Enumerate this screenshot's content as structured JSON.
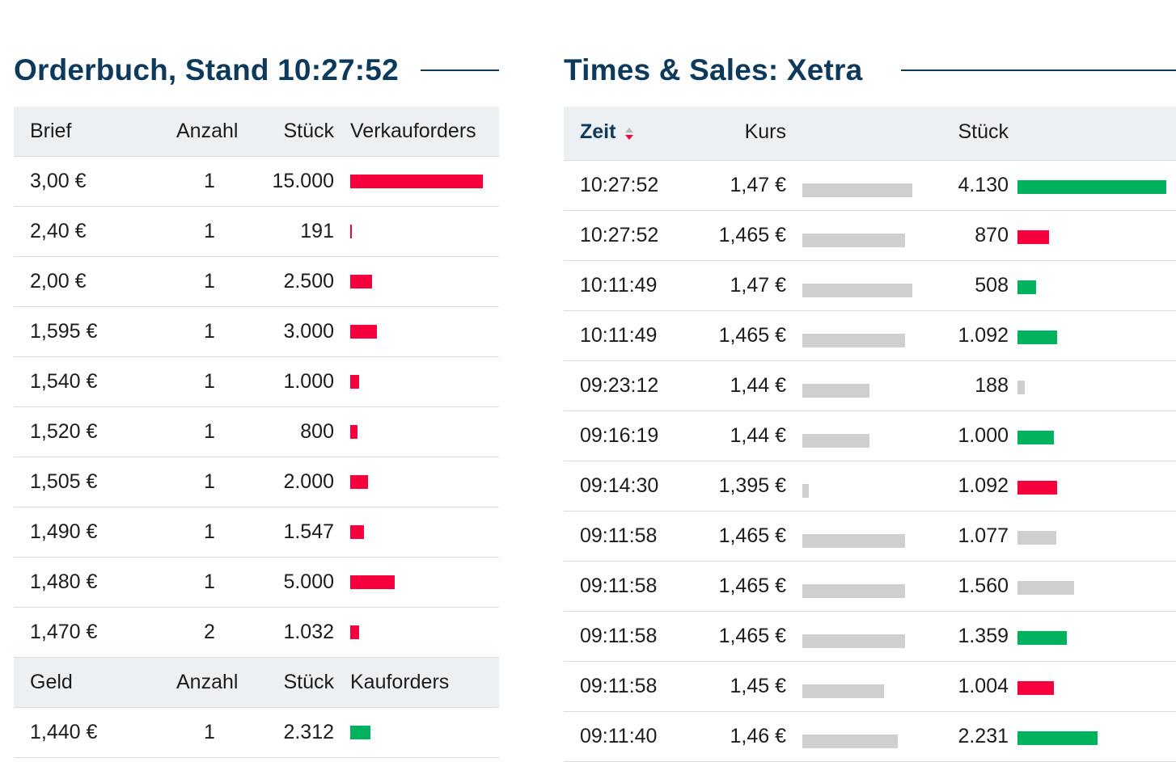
{
  "orderbook": {
    "title": "Orderbuch, Stand 10:27:52",
    "ask_header": {
      "price": "Brief",
      "count": "Anzahl",
      "pieces": "Stück",
      "bar": "Verkauforders"
    },
    "asks": [
      {
        "price": "3,00 €",
        "count": "1",
        "pieces": "15.000",
        "volume": 15000
      },
      {
        "price": "2,40 €",
        "count": "1",
        "pieces": "191",
        "volume": 191
      },
      {
        "price": "2,00 €",
        "count": "1",
        "pieces": "2.500",
        "volume": 2500
      },
      {
        "price": "1,595 €",
        "count": "1",
        "pieces": "3.000",
        "volume": 3000
      },
      {
        "price": "1,540 €",
        "count": "1",
        "pieces": "1.000",
        "volume": 1000
      },
      {
        "price": "1,520 €",
        "count": "1",
        "pieces": "800",
        "volume": 800
      },
      {
        "price": "1,505 €",
        "count": "1",
        "pieces": "2.000",
        "volume": 2000
      },
      {
        "price": "1,490 €",
        "count": "1",
        "pieces": "1.547",
        "volume": 1547
      },
      {
        "price": "1,480 €",
        "count": "1",
        "pieces": "5.000",
        "volume": 5000
      },
      {
        "price": "1,470 €",
        "count": "2",
        "pieces": "1.032",
        "volume": 1032
      }
    ],
    "bid_header": {
      "price": "Geld",
      "count": "Anzahl",
      "pieces": "Stück",
      "bar": "Kauforders"
    },
    "bids": [
      {
        "price": "1,440 €",
        "count": "1",
        "pieces": "2.312",
        "volume": 2312
      }
    ],
    "colors": {
      "sell": "#f5003d",
      "buy": "#00b15d"
    }
  },
  "times_sales": {
    "title": "Times & Sales: Xetra",
    "header": {
      "time": "Zeit",
      "price": "Kurs",
      "pieces": "Stück"
    },
    "sort_icon": "sort-desc-icon",
    "trades": [
      {
        "time": "10:27:52",
        "price": "1,47 €",
        "price_value": 1.47,
        "pieces": "4.130",
        "volume": 4130,
        "side": "buy"
      },
      {
        "time": "10:27:52",
        "price": "1,465 €",
        "price_value": 1.465,
        "pieces": "870",
        "volume": 870,
        "side": "sell"
      },
      {
        "time": "10:11:49",
        "price": "1,47 €",
        "price_value": 1.47,
        "pieces": "508",
        "volume": 508,
        "side": "buy"
      },
      {
        "time": "10:11:49",
        "price": "1,465 €",
        "price_value": 1.465,
        "pieces": "1.092",
        "volume": 1092,
        "side": "buy"
      },
      {
        "time": "09:23:12",
        "price": "1,44 €",
        "price_value": 1.44,
        "pieces": "188",
        "volume": 188,
        "side": "neutral"
      },
      {
        "time": "09:16:19",
        "price": "1,44 €",
        "price_value": 1.44,
        "pieces": "1.000",
        "volume": 1000,
        "side": "buy"
      },
      {
        "time": "09:14:30",
        "price": "1,395 €",
        "price_value": 1.395,
        "pieces": "1.092",
        "volume": 1092,
        "side": "sell"
      },
      {
        "time": "09:11:58",
        "price": "1,465 €",
        "price_value": 1.465,
        "pieces": "1.077",
        "volume": 1077,
        "side": "neutral"
      },
      {
        "time": "09:11:58",
        "price": "1,465 €",
        "price_value": 1.465,
        "pieces": "1.560",
        "volume": 1560,
        "side": "neutral"
      },
      {
        "time": "09:11:58",
        "price": "1,465 €",
        "price_value": 1.465,
        "pieces": "1.359",
        "volume": 1359,
        "side": "buy"
      },
      {
        "time": "09:11:58",
        "price": "1,45 €",
        "price_value": 1.45,
        "pieces": "1.004",
        "volume": 1004,
        "side": "sell"
      },
      {
        "time": "09:11:40",
        "price": "1,46 €",
        "price_value": 1.46,
        "pieces": "2.231",
        "volume": 2231,
        "side": "buy"
      }
    ],
    "colors": {
      "buy": "#00b15d",
      "sell": "#f5003d",
      "neutral": "#cfcfcf",
      "price_bar": "#cfcfcf"
    }
  }
}
